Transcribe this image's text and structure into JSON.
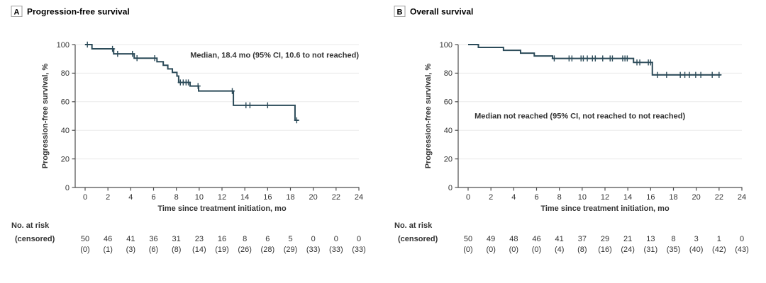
{
  "chart_data": {
    "type": "line",
    "subtype": "kaplan-meier-step",
    "panels": [
      {
        "panel_label": "A",
        "panel_title": "Progression-free survival",
        "annotation": "Median, 18.4 mo (95% CI, 10.6 to not reached)",
        "annotation_anchor": {
          "t": 24,
          "pct": 92.5,
          "anchor": "end"
        },
        "xlabel": "Time since treatment initiation, mo",
        "ylabel": "Progression-free survival, %",
        "xlim": [
          0,
          24
        ],
        "ylim": [
          0,
          100
        ],
        "xticks": [
          0,
          2,
          4,
          6,
          8,
          10,
          12,
          14,
          16,
          18,
          20,
          22,
          24
        ],
        "yticks": [
          0,
          20,
          40,
          60,
          80,
          100
        ],
        "grid": "horizontal",
        "curve": {
          "start_pct": 100,
          "end_t": 18.7,
          "steps": [
            [
              0.6,
              97
            ],
            [
              2.5,
              93.5
            ],
            [
              4.3,
              90.5
            ],
            [
              6.3,
              88
            ],
            [
              6.85,
              85.5
            ],
            [
              7.25,
              83
            ],
            [
              7.65,
              80.5
            ],
            [
              8.05,
              78
            ],
            [
              8.2,
              73.5
            ],
            [
              9.2,
              71
            ],
            [
              9.95,
              67.5
            ],
            [
              13.0,
              57.5
            ],
            [
              18.4,
              47
            ]
          ]
        },
        "censors": [
          [
            0.2,
            100
          ],
          [
            2.4,
            97
          ],
          [
            2.85,
            93.5
          ],
          [
            4.15,
            93.5
          ],
          [
            4.55,
            90.5
          ],
          [
            6.1,
            90.5
          ],
          [
            8.35,
            73.5
          ],
          [
            8.6,
            73.5
          ],
          [
            8.85,
            73.5
          ],
          [
            9.05,
            73.5
          ],
          [
            9.9,
            71
          ],
          [
            12.9,
            67.5
          ],
          [
            14.1,
            57.5
          ],
          [
            14.45,
            57.5
          ],
          [
            16.0,
            57.5
          ],
          [
            18.55,
            47
          ]
        ],
        "at_risk": {
          "row_label_1": "No. at risk",
          "row_label_2": "(censored)",
          "times": [
            0,
            2,
            4,
            6,
            8,
            10,
            12,
            14,
            16,
            18,
            20,
            22,
            24
          ],
          "counts": [
            50,
            46,
            41,
            36,
            31,
            23,
            16,
            8,
            6,
            5,
            0,
            0,
            0
          ],
          "censored_counts": [
            0,
            1,
            3,
            6,
            8,
            14,
            19,
            26,
            28,
            29,
            33,
            33,
            33
          ]
        }
      },
      {
        "panel_label": "B",
        "panel_title": "Overall survival",
        "annotation": "Median not reached (95% CI, not reached to not reached)",
        "annotation_anchor": {
          "t": 9.8,
          "pct": 50,
          "anchor": "middle"
        },
        "xlabel": "Time since treatment initiation, mo",
        "ylabel": "Progression-free survival, %",
        "xlim": [
          0,
          24
        ],
        "ylim": [
          0,
          100
        ],
        "xticks": [
          0,
          2,
          4,
          6,
          8,
          10,
          12,
          14,
          16,
          18,
          20,
          22,
          24
        ],
        "yticks": [
          0,
          20,
          40,
          60,
          80,
          100
        ],
        "grid": "horizontal",
        "curve": {
          "start_pct": 100,
          "end_t": 22.15,
          "steps": [
            [
              0.9,
              98
            ],
            [
              3.1,
              96
            ],
            [
              4.6,
              94
            ],
            [
              5.8,
              92
            ],
            [
              7.4,
              90.3
            ],
            [
              14.5,
              87.5
            ],
            [
              16.15,
              78.8
            ]
          ]
        },
        "censors": [
          [
            7.55,
            90.3
          ],
          [
            8.85,
            90.3
          ],
          [
            9.1,
            90.3
          ],
          [
            9.9,
            90.3
          ],
          [
            10.1,
            90.3
          ],
          [
            10.45,
            90.3
          ],
          [
            10.9,
            90.3
          ],
          [
            11.15,
            90.3
          ],
          [
            11.8,
            90.3
          ],
          [
            12.45,
            90.3
          ],
          [
            12.65,
            90.3
          ],
          [
            13.55,
            90.3
          ],
          [
            13.75,
            90.3
          ],
          [
            13.95,
            90.3
          ],
          [
            14.8,
            87.5
          ],
          [
            15.05,
            87.5
          ],
          [
            15.8,
            87.5
          ],
          [
            16.0,
            87.5
          ],
          [
            16.6,
            78.8
          ],
          [
            17.4,
            78.8
          ],
          [
            18.6,
            78.8
          ],
          [
            19.0,
            78.8
          ],
          [
            19.4,
            78.8
          ],
          [
            19.95,
            78.8
          ],
          [
            20.4,
            78.8
          ],
          [
            21.4,
            78.8
          ],
          [
            22.0,
            78.8
          ]
        ],
        "at_risk": {
          "row_label_1": "No. at risk",
          "row_label_2": "(censored)",
          "times": [
            0,
            2,
            4,
            6,
            8,
            10,
            12,
            14,
            16,
            18,
            20,
            22,
            24
          ],
          "counts": [
            50,
            49,
            48,
            46,
            41,
            37,
            29,
            21,
            13,
            8,
            3,
            1,
            0
          ],
          "censored_counts": [
            0,
            0,
            0,
            0,
            4,
            8,
            16,
            24,
            31,
            35,
            40,
            42,
            43
          ]
        }
      }
    ],
    "colors": {
      "curve": "#2c4b59",
      "text": "#333333",
      "title_text": "#000000",
      "grid": "#eaeaea",
      "axis": "#4d4d4d",
      "panel_box_border": "#9b9b9b",
      "background": "#ffffff"
    }
  }
}
